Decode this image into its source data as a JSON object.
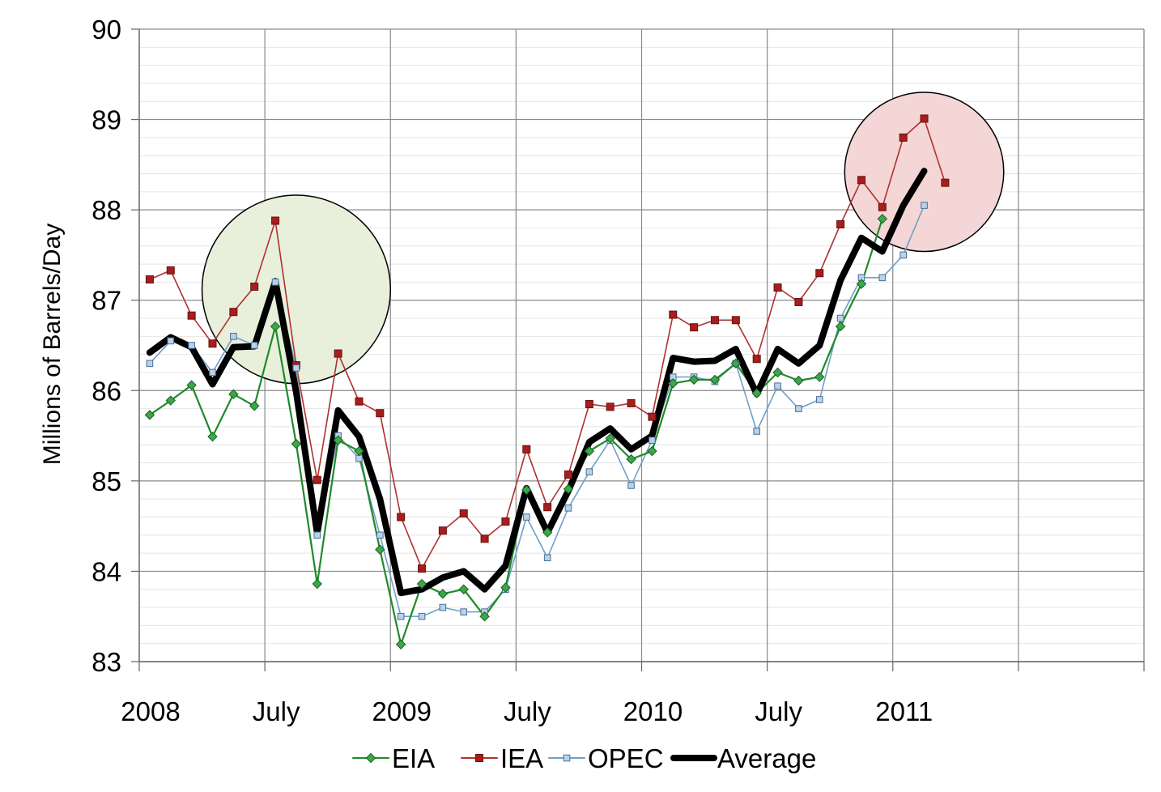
{
  "chart_data": {
    "type": "line",
    "ylabel": "Millions of Barrels/Day",
    "ylim": [
      83,
      90
    ],
    "yticks": [
      83,
      84,
      85,
      86,
      87,
      88,
      89,
      90
    ],
    "x_start": "2008-01",
    "x_end": "2011-12",
    "xtick_labels": [
      {
        "label": "2008",
        "month": "2008-01"
      },
      {
        "label": "July",
        "month": "2008-07"
      },
      {
        "label": "2009",
        "month": "2009-01"
      },
      {
        "label": "July",
        "month": "2009-07"
      },
      {
        "label": "2010",
        "month": "2010-01"
      },
      {
        "label": "July",
        "month": "2010-07"
      },
      {
        "label": "2011",
        "month": "2011-01"
      }
    ],
    "grid": true,
    "legend_position": "bottom",
    "series": [
      {
        "name": "EIA",
        "color": "#1f8a2a",
        "marker": "diamond",
        "start": "2008-01",
        "values": [
          85.73,
          85.89,
          86.06,
          85.49,
          85.96,
          85.83,
          86.71,
          85.41,
          83.86,
          85.45,
          85.33,
          84.24,
          83.19,
          83.86,
          83.75,
          83.8,
          83.5,
          83.82,
          84.9,
          84.43,
          84.91,
          85.33,
          85.47,
          85.24,
          85.33,
          86.08,
          86.12,
          86.12,
          86.3,
          85.97,
          86.2,
          86.11,
          86.15,
          86.71,
          87.18,
          87.9
        ]
      },
      {
        "name": "IEA",
        "color": "#b03030",
        "marker": "square",
        "start": "2008-01",
        "values": [
          87.23,
          87.33,
          86.83,
          86.52,
          86.87,
          87.15,
          87.88,
          86.28,
          85.01,
          86.41,
          85.88,
          85.75,
          84.6,
          84.03,
          84.45,
          84.64,
          84.36,
          84.55,
          85.35,
          84.71,
          85.07,
          85.85,
          85.82,
          85.86,
          85.71,
          86.84,
          86.7,
          86.78,
          86.78,
          86.35,
          87.14,
          86.98,
          87.3,
          87.84,
          88.33,
          88.03,
          88.8,
          89.01,
          88.3
        ]
      },
      {
        "name": "OPEC",
        "color": "#6f9fc8",
        "marker": "square-small",
        "start": "2008-01",
        "values": [
          86.3,
          86.55,
          86.5,
          86.2,
          86.6,
          86.5,
          87.2,
          86.25,
          84.4,
          85.5,
          85.25,
          84.4,
          83.5,
          83.5,
          83.6,
          83.55,
          83.55,
          83.8,
          84.6,
          84.15,
          84.7,
          85.1,
          85.45,
          84.95,
          85.45,
          86.15,
          86.15,
          86.1,
          86.3,
          85.55,
          86.05,
          85.8,
          85.9,
          86.8,
          87.25,
          87.25,
          87.5,
          88.05
        ]
      },
      {
        "name": "Average",
        "color": "#000000",
        "marker": "none",
        "start": "2008-01",
        "values": [
          86.42,
          86.59,
          86.48,
          86.07,
          86.48,
          86.49,
          87.21,
          85.98,
          84.42,
          85.78,
          85.49,
          84.8,
          83.76,
          83.8,
          83.93,
          84.0,
          83.8,
          84.06,
          84.92,
          84.43,
          84.89,
          85.43,
          85.58,
          85.35,
          85.5,
          86.36,
          86.32,
          86.33,
          86.46,
          85.96,
          86.46,
          86.3,
          86.5,
          87.22,
          87.69,
          87.54,
          88.05,
          88.43
        ]
      }
    ],
    "annotations": [
      {
        "shape": "circle",
        "fill": "#e8f0dc",
        "stroke": "#000000",
        "center_month": "2008-08",
        "center_value": 87.12,
        "radius_months": 4.5
      },
      {
        "shape": "circle",
        "fill": "#f4d6d6",
        "stroke": "#000000",
        "center_month": "2011-02",
        "center_value": 88.42,
        "radius_months": 3.8
      }
    ]
  }
}
